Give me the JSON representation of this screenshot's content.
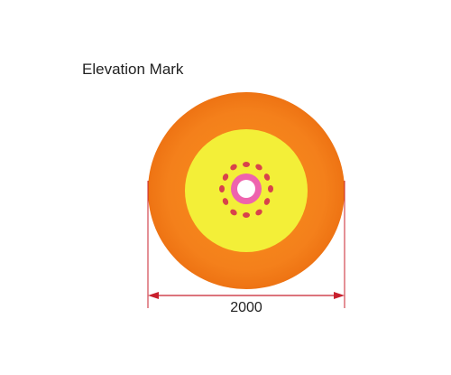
{
  "title": "Elevation Mark",
  "dimension": {
    "label": "2000"
  },
  "colors": {
    "outer_ring": "#f47f1b",
    "outer_ring_edge": "#ef7412",
    "inner_disc": "#f3ef38",
    "markers": "#d8424b",
    "pink_ring": "#ee63ae",
    "center": "#ffffff",
    "dimension_line": "#c8202d",
    "text": "#222222"
  }
}
